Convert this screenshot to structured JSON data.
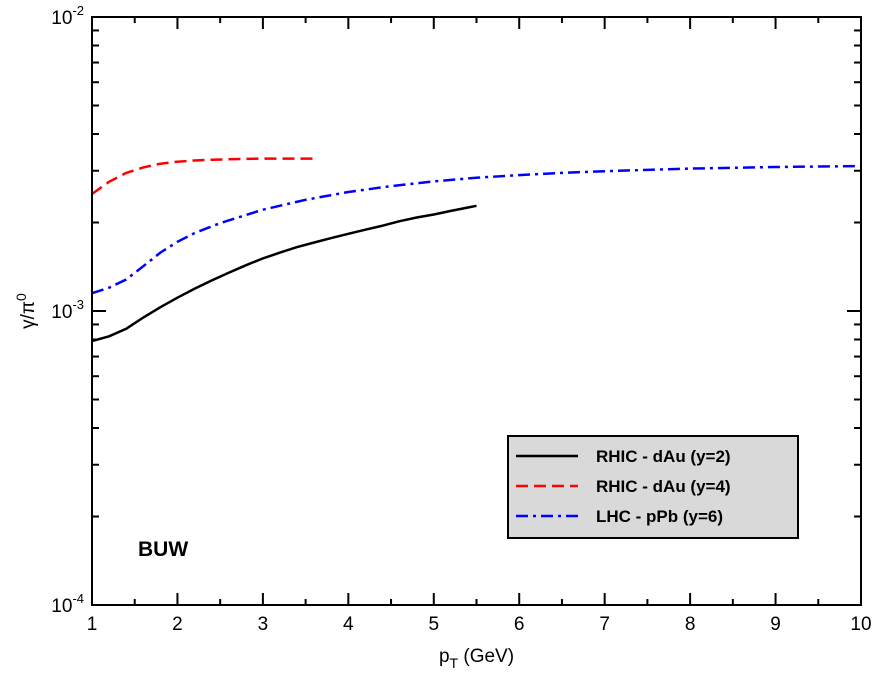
{
  "chart_data": {
    "type": "line",
    "title": "",
    "xlabel": "p",
    "xlabel_sub": "T",
    "xlabel_unit": " (GeV)",
    "ylabel": "γ/π",
    "ylabel_sup": "0",
    "xlim": [
      1,
      10
    ],
    "ylim": [
      0.0001,
      0.01
    ],
    "yscale": "log",
    "x_ticks": [
      1,
      2,
      3,
      4,
      5,
      6,
      7,
      8,
      9,
      10
    ],
    "x_tick_labels": [
      "1",
      "2",
      "3",
      "4",
      "5",
      "6",
      "7",
      "8",
      "9",
      "10"
    ],
    "y_major_ticks": [
      {
        "value": 0.0001,
        "base": "10",
        "exp": "-4"
      },
      {
        "value": 0.001,
        "base": "10",
        "exp": "-3"
      },
      {
        "value": 0.01,
        "base": "10",
        "exp": "-2"
      }
    ],
    "grid": false,
    "legend_position": "bottom-right",
    "annotations": [
      {
        "text": "BUW"
      }
    ],
    "series": [
      {
        "name": "RHIC - dAu (y=2)",
        "color": "#000000",
        "dash": "solid",
        "x": [
          1.0,
          1.2,
          1.4,
          1.6,
          1.8,
          2.0,
          2.2,
          2.4,
          2.6,
          2.8,
          3.0,
          3.2,
          3.4,
          3.6,
          3.8,
          4.0,
          4.2,
          4.4,
          4.6,
          4.8,
          5.0,
          5.2,
          5.4,
          5.5
        ],
        "y": [
          0.00079,
          0.00082,
          0.00087,
          0.00095,
          0.00103,
          0.00111,
          0.00119,
          0.00127,
          0.00135,
          0.00143,
          0.00151,
          0.00158,
          0.00165,
          0.00171,
          0.00177,
          0.00183,
          0.00189,
          0.00195,
          0.00202,
          0.00208,
          0.00213,
          0.00219,
          0.00225,
          0.00228
        ]
      },
      {
        "name": "RHIC - dAu (y=4)",
        "color": "#ff0000",
        "dash": "dashed",
        "x": [
          1.0,
          1.2,
          1.4,
          1.6,
          1.8,
          2.0,
          2.2,
          2.4,
          2.6,
          2.8,
          3.0,
          3.2,
          3.4,
          3.6
        ],
        "y": [
          0.0025,
          0.00275,
          0.00295,
          0.00308,
          0.00317,
          0.00322,
          0.00325,
          0.00327,
          0.00328,
          0.00329,
          0.0033,
          0.0033,
          0.0033,
          0.0033
        ]
      },
      {
        "name": "LHC - pPb (y=6)",
        "color": "#0000ff",
        "dash": "dash-dot",
        "x": [
          1.0,
          1.2,
          1.4,
          1.6,
          1.8,
          2.0,
          2.2,
          2.5,
          3.0,
          3.5,
          4.0,
          4.5,
          5.0,
          5.5,
          6.0,
          6.5,
          7.0,
          7.5,
          8.0,
          8.5,
          9.0,
          9.5,
          10.0
        ],
        "y": [
          0.00115,
          0.0012,
          0.00128,
          0.00142,
          0.00158,
          0.00172,
          0.00184,
          0.00199,
          0.00221,
          0.00239,
          0.00254,
          0.00266,
          0.00276,
          0.00284,
          0.0029,
          0.00295,
          0.00299,
          0.00302,
          0.00305,
          0.00307,
          0.00309,
          0.0031,
          0.00311
        ]
      }
    ]
  }
}
